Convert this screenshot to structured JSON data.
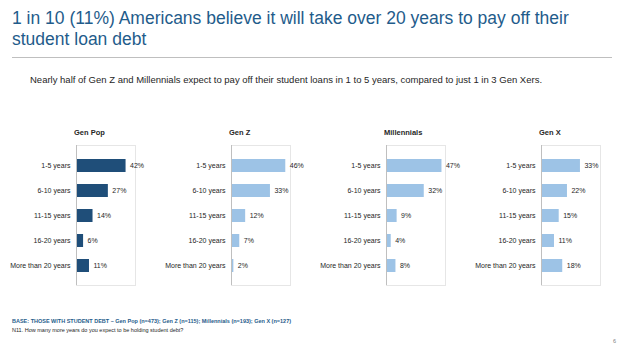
{
  "title": "1 in 10 (11%) Americans believe it will take over 20 years to pay off their student loan debt",
  "subtitle": "Nearly half of Gen Z and Millennials expect to pay off their student loans in 1 to 5 years, compared to just 1 in 3 Gen Xers.",
  "base_note": "BASE: THOSE WITH STUDENT DEBT – Gen Pop (n=473); Gen Z (n=115); Millennials (n=193); Gen X (n=127)",
  "question_note": "N11. How many more years do you expect to be holding student debt?",
  "page_number": "6",
  "chart_data": [
    {
      "type": "bar",
      "title": "Gen Pop",
      "orientation": "horizontal",
      "categories": [
        "1-5 years",
        "6-10 years",
        "11-15 years",
        "16-20 years",
        "More than 20 years"
      ],
      "values": [
        42,
        27,
        14,
        6,
        11
      ],
      "value_labels": [
        "42%",
        "27%",
        "14%",
        "6%",
        "11%"
      ],
      "color": "#1f4e79",
      "xlim": [
        0,
        50
      ],
      "data_labels": true,
      "tick_labels": "y"
    },
    {
      "type": "bar",
      "title": "Gen Z",
      "orientation": "horizontal",
      "categories": [
        "1-5 years",
        "6-10 years",
        "11-15 years",
        "16-20 years",
        "More than 20 years"
      ],
      "values": [
        46,
        33,
        12,
        7,
        2
      ],
      "value_labels": [
        "46%",
        "33%",
        "12%",
        "7%",
        "2%"
      ],
      "color": "#9dc3e6",
      "xlim": [
        0,
        50
      ],
      "data_labels": true,
      "tick_labels": "y"
    },
    {
      "type": "bar",
      "title": "Millennials",
      "orientation": "horizontal",
      "categories": [
        "1-5 years",
        "6-10 years",
        "11-15 years",
        "16-20 years",
        "More than 20 years"
      ],
      "values": [
        47,
        32,
        9,
        4,
        8
      ],
      "value_labels": [
        "47%",
        "32%",
        "9%",
        "4%",
        "8%"
      ],
      "color": "#9dc3e6",
      "xlim": [
        0,
        50
      ],
      "data_labels": true,
      "tick_labels": "y"
    },
    {
      "type": "bar",
      "title": "Gen X",
      "orientation": "horizontal",
      "categories": [
        "1-5 years",
        "6-10 years",
        "11-15 years",
        "16-20 years",
        "More than 20 years"
      ],
      "values": [
        33,
        22,
        15,
        11,
        18
      ],
      "value_labels": [
        "33%",
        "22%",
        "15%",
        "11%",
        "18%"
      ],
      "color": "#9dc3e6",
      "xlim": [
        0,
        50
      ],
      "data_labels": true,
      "tick_labels": "y"
    }
  ]
}
